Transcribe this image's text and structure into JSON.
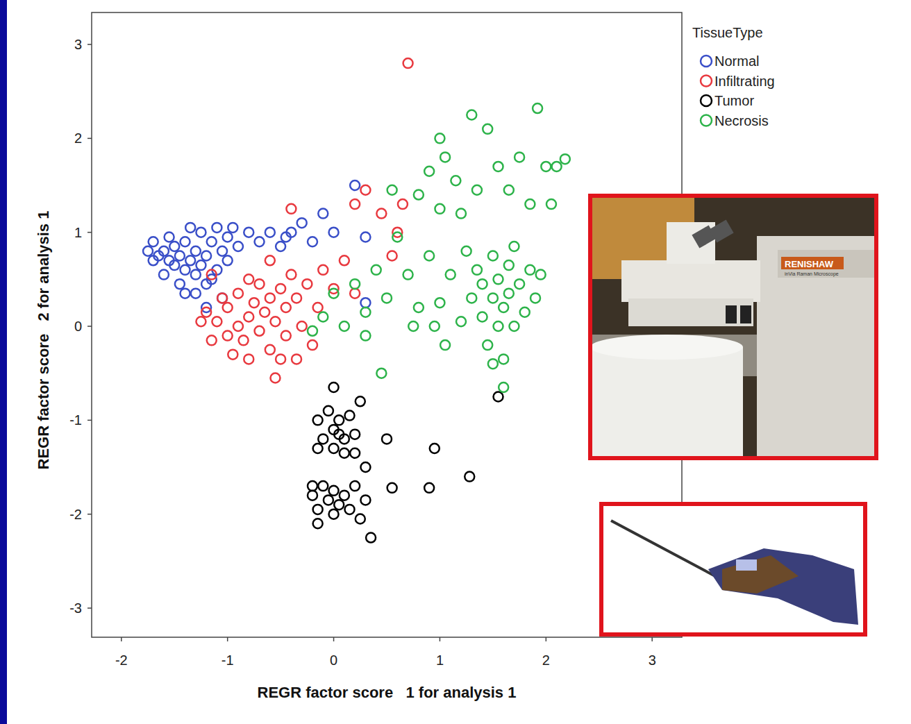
{
  "chart_data": {
    "type": "scatter",
    "x_label": "REGR factor score   1 for analysis 1",
    "y_label": "REGR factor score   2 for analysis 1",
    "xlim": [
      -2.28,
      3.28
    ],
    "ylim": [
      -3.31,
      3.34
    ],
    "xticks": [
      -2,
      -1,
      0,
      1,
      2,
      3
    ],
    "yticks": [
      -3,
      -2,
      -1,
      0,
      1,
      2,
      3
    ],
    "grid": false,
    "legend": "top-right",
    "legend_title": "TissueType",
    "marker": "open-circle",
    "annotations": [
      "RENISHAW",
      "inVia Raman Microscope"
    ],
    "series": [
      {
        "name": "Normal",
        "color": "#3a4fc8",
        "x": [
          -1.7,
          -1.65,
          -1.6,
          -1.55,
          -1.5,
          -1.5,
          -1.45,
          -1.4,
          -1.4,
          -1.35,
          -1.3,
          -1.3,
          -1.25,
          -1.25,
          -1.2,
          -1.2,
          -1.15,
          -1.1,
          -1.1,
          -1.05,
          -1.0,
          -1.0,
          -0.95,
          -0.9,
          -1.6,
          -1.55,
          -1.45,
          -1.35,
          -1.3,
          -1.2,
          -1.15,
          -1.7,
          -1.75,
          -0.8,
          -0.7,
          -0.6,
          -0.5,
          -0.45,
          -0.4,
          -0.3,
          -0.2,
          -0.1,
          0.0,
          0.2,
          0.3,
          -1.4,
          -1.05,
          0.3
        ],
        "values": [
          0.9,
          0.75,
          0.8,
          0.7,
          0.65,
          0.85,
          0.75,
          0.6,
          0.9,
          0.7,
          0.55,
          0.8,
          1.0,
          0.65,
          0.45,
          0.75,
          0.9,
          0.6,
          1.05,
          0.8,
          0.95,
          0.7,
          1.05,
          0.85,
          0.55,
          0.95,
          0.45,
          1.05,
          0.35,
          0.2,
          0.5,
          0.7,
          0.8,
          1.0,
          0.9,
          1.0,
          0.85,
          0.95,
          1.0,
          1.1,
          0.9,
          1.2,
          1.0,
          1.5,
          0.95,
          0.35,
          0.3,
          0.25
        ]
      },
      {
        "name": "Infiltrating",
        "color": "#e8393f",
        "x": [
          -1.2,
          -1.15,
          -1.1,
          -1.05,
          -1.0,
          -1.0,
          -0.95,
          -0.9,
          -0.9,
          -0.85,
          -0.8,
          -0.8,
          -0.75,
          -0.7,
          -0.7,
          -0.65,
          -0.6,
          -0.6,
          -0.55,
          -0.5,
          -0.45,
          -0.45,
          -0.4,
          -0.35,
          -0.3,
          -0.25,
          -0.2,
          -0.15,
          -0.1,
          0.0,
          0.1,
          0.2,
          0.3,
          0.45,
          0.6,
          0.65,
          0.55,
          0.7,
          -1.15,
          -0.55,
          -0.4,
          -0.8,
          -0.6,
          -1.25,
          -0.35,
          0.2,
          -0.5
        ],
        "values": [
          0.15,
          -0.15,
          0.05,
          0.3,
          -0.1,
          0.2,
          -0.3,
          0.0,
          0.35,
          -0.15,
          0.1,
          -0.35,
          0.25,
          -0.05,
          0.45,
          0.15,
          -0.25,
          0.3,
          0.05,
          0.4,
          -0.1,
          0.2,
          0.55,
          0.3,
          0.0,
          0.45,
          -0.2,
          0.2,
          0.6,
          0.4,
          0.7,
          1.3,
          1.45,
          1.2,
          1.0,
          1.3,
          0.75,
          2.8,
          0.55,
          -0.55,
          1.25,
          0.5,
          0.7,
          0.05,
          -0.35,
          0.35,
          -0.35
        ]
      },
      {
        "name": "Tumor",
        "color": "#000000",
        "x": [
          -0.15,
          -0.1,
          -0.05,
          0.0,
          0.0,
          0.05,
          0.1,
          0.15,
          0.2,
          0.25,
          -0.15,
          0.1,
          0.05,
          0.2,
          -0.2,
          -0.15,
          -0.1,
          -0.05,
          0.0,
          0.0,
          0.05,
          0.1,
          0.15,
          0.2,
          -0.15,
          0.25,
          0.3,
          -0.2,
          0.5,
          0.95,
          1.28,
          0.9,
          0.55,
          0.35,
          1.55,
          0.0,
          0.3
        ],
        "values": [
          -1.0,
          -1.2,
          -0.9,
          -1.1,
          -1.3,
          -1.0,
          -1.2,
          -0.95,
          -1.15,
          -0.8,
          -1.3,
          -1.35,
          -1.15,
          -1.35,
          -1.8,
          -1.95,
          -1.7,
          -1.85,
          -2.0,
          -1.75,
          -1.9,
          -1.8,
          -1.95,
          -1.7,
          -2.1,
          -2.05,
          -1.85,
          -1.7,
          -1.2,
          -1.3,
          -1.6,
          -1.72,
          -1.72,
          -2.25,
          -0.75,
          -0.65,
          -1.5
        ]
      },
      {
        "name": "Necrosis",
        "color": "#2db34a",
        "x": [
          1.3,
          1.35,
          1.4,
          1.4,
          1.45,
          1.5,
          1.5,
          1.55,
          1.55,
          1.6,
          1.6,
          1.65,
          1.65,
          1.7,
          1.7,
          1.75,
          1.8,
          1.85,
          1.9,
          1.25,
          1.6,
          1.5,
          1.2,
          1.95,
          1.1,
          1.0,
          0.9,
          0.8,
          0.7,
          0.6,
          0.5,
          0.4,
          0.3,
          0.2,
          0.1,
          0.0,
          -0.1,
          -0.2,
          0.3,
          0.45,
          0.55,
          0.8,
          0.9,
          1.0,
          1.05,
          1.15,
          1.3,
          1.35,
          1.45,
          1.55,
          1.65,
          1.75,
          1.85,
          1.92,
          2.0,
          2.1,
          2.18,
          2.05,
          1.2,
          1.0,
          0.75,
          0.95,
          1.05
        ],
        "values": [
          0.3,
          0.6,
          0.1,
          0.45,
          -0.2,
          0.3,
          0.75,
          0.0,
          0.5,
          0.2,
          -0.35,
          0.65,
          0.35,
          0.0,
          0.85,
          0.45,
          0.15,
          0.6,
          0.3,
          0.8,
          -0.65,
          -0.4,
          0.05,
          0.55,
          0.55,
          0.25,
          0.75,
          0.2,
          0.55,
          0.95,
          0.3,
          0.6,
          0.15,
          0.45,
          0.0,
          0.35,
          0.1,
          -0.05,
          -0.1,
          -0.5,
          1.45,
          1.4,
          1.65,
          2.0,
          1.8,
          1.55,
          2.25,
          1.45,
          2.1,
          1.7,
          1.45,
          1.8,
          1.3,
          2.32,
          1.7,
          1.7,
          1.78,
          1.3,
          1.2,
          1.25,
          0.0,
          0.0,
          -0.2
        ]
      }
    ]
  }
}
